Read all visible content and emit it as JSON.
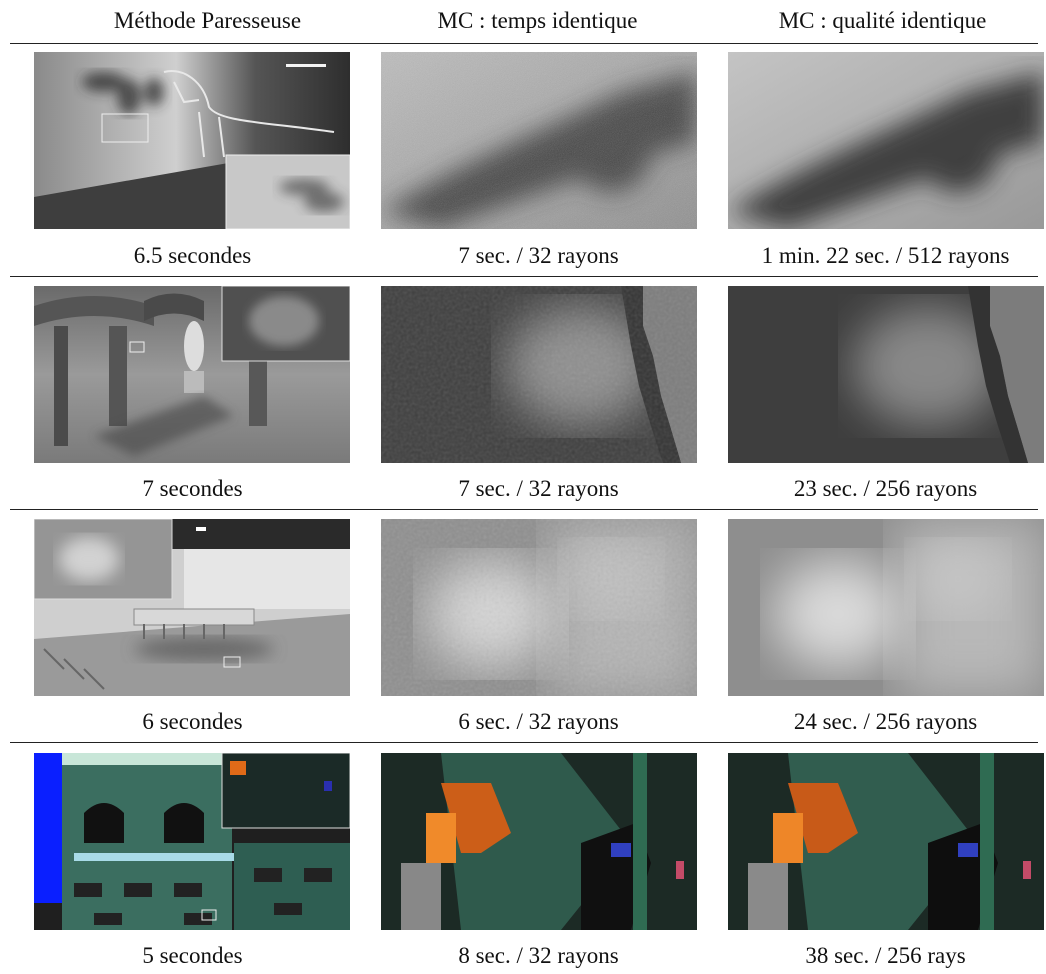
{
  "headers": [
    "Méthode Paresseuse",
    "MC : temps identique",
    "MC : qualité identique"
  ],
  "rows": [
    {
      "captions": [
        "6.5 secondes",
        "7 sec. / 32 rayons",
        "1 min. 22 sec. / 512 rayons"
      ]
    },
    {
      "captions": [
        "7 secondes",
        "7 sec. / 32 rayons",
        "23 sec. / 256 rayons"
      ]
    },
    {
      "captions": [
        "6 secondes",
        "6 sec. / 32 rayons",
        "24 sec. / 256 rayons"
      ]
    },
    {
      "captions": [
        "5 secondes",
        "8 sec. / 32 rayons",
        "38 sec. / 256 rays"
      ]
    }
  ]
}
